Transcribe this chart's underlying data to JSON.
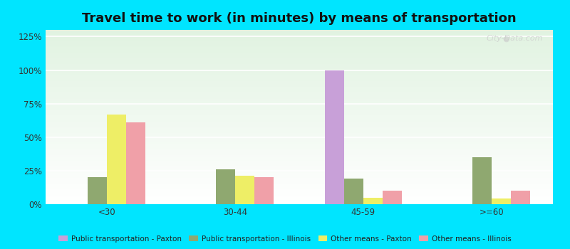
{
  "title": "Travel time to work (in minutes) by means of transportation",
  "categories": [
    "<30",
    "30-44",
    "45-59",
    ">=60"
  ],
  "series": {
    "Public transportation - Paxton": [
      0,
      0,
      100,
      0
    ],
    "Public transportation - Illinois": [
      20,
      26,
      19,
      35
    ],
    "Other means - Paxton": [
      67,
      21,
      5,
      4
    ],
    "Other means - Illinois": [
      61,
      20,
      10,
      10
    ]
  },
  "colors": {
    "Public transportation - Paxton": "#c8a0d8",
    "Public transportation - Illinois": "#8fa870",
    "Other means - Paxton": "#eeee66",
    "Other means - Illinois": "#f0a0a8"
  },
  "background_outer": "#00e5ff",
  "yticks": [
    0,
    25,
    50,
    75,
    100,
    125
  ],
  "ylim": [
    0,
    130
  ],
  "bar_width": 0.15,
  "figsize": [
    8.0,
    3.5
  ],
  "dpi": 100,
  "title_fontsize": 13,
  "legend_fontsize": 7.5,
  "tick_fontsize": 8.5
}
